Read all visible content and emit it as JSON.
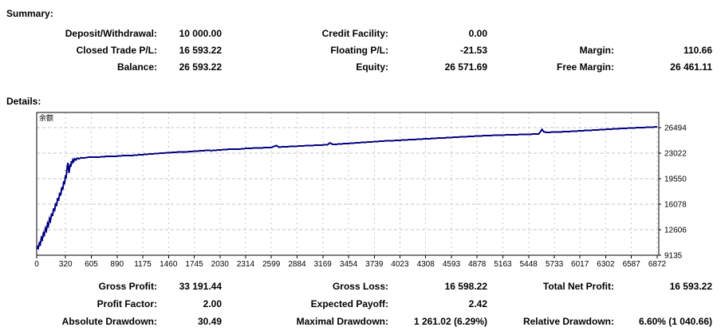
{
  "summary": {
    "heading": "Summary:",
    "rows": [
      {
        "c1l": "Deposit/Withdrawal:",
        "c1v": "10 000.00",
        "c2l": "Credit Facility:",
        "c2v": "0.00",
        "c3l": "",
        "c3v": ""
      },
      {
        "c1l": "Closed Trade P/L:",
        "c1v": "16 593.22",
        "c2l": "Floating P/L:",
        "c2v": "-21.53",
        "c3l": "Margin:",
        "c3v": "110.66"
      },
      {
        "c1l": "Balance:",
        "c1v": "26 593.22",
        "c2l": "Equity:",
        "c2v": "26 571.69",
        "c3l": "Free Margin:",
        "c3v": "26 461.11"
      }
    ]
  },
  "details": {
    "heading": "Details:",
    "stats_rows": [
      {
        "c1l": "Gross Profit:",
        "c1v": "33 191.44",
        "c2l": "Gross Loss:",
        "c2v": "16 598.22",
        "c3l": "Total Net Profit:",
        "c3v": "16 593.22"
      },
      {
        "c1l": "Profit Factor:",
        "c1v": "2.00",
        "c2l": "Expected Payoff:",
        "c2v": "2.42",
        "c3l": "",
        "c3v": ""
      },
      {
        "c1l": "Absolute Drawdown:",
        "c1v": "30.49",
        "c2l": "Maximal Drawdown:",
        "c2v": "1 261.02 (6.29%)",
        "c3l": "Relative Drawdown:",
        "c3v": "6.60% (1 040.66)"
      }
    ]
  },
  "chart_data": {
    "type": "line",
    "title": "余额",
    "xlabel": "",
    "ylabel": "",
    "grid": true,
    "legend_position": "none",
    "line_color": "#000080",
    "grid_color": "#c6c6c6",
    "border_color": "#000000",
    "background_color": "#ffffff",
    "xlim": [
      0,
      6890
    ],
    "ylim": [
      9135,
      28556
    ],
    "x_ticks": [
      0,
      320,
      605,
      890,
      1175,
      1460,
      1745,
      2030,
      2314,
      2599,
      2884,
      3169,
      3454,
      3739,
      4023,
      4308,
      4593,
      4878,
      5163,
      5448,
      5733,
      6017,
      6302,
      6587,
      6872
    ],
    "y_ticks": [
      26494,
      23022,
      19550,
      16078,
      12606,
      9135
    ],
    "series": [
      {
        "name": "Balance",
        "points": [
          [
            0,
            9990
          ],
          [
            10,
            10250
          ],
          [
            18,
            10100
          ],
          [
            30,
            10800
          ],
          [
            40,
            10600
          ],
          [
            52,
            11500
          ],
          [
            62,
            11250
          ],
          [
            75,
            12150
          ],
          [
            85,
            11900
          ],
          [
            98,
            12800
          ],
          [
            108,
            12500
          ],
          [
            120,
            13450
          ],
          [
            130,
            13150
          ],
          [
            142,
            14100
          ],
          [
            152,
            13800
          ],
          [
            165,
            14800
          ],
          [
            175,
            14450
          ],
          [
            188,
            15500
          ],
          [
            198,
            15150
          ],
          [
            210,
            16200
          ],
          [
            220,
            15850
          ],
          [
            232,
            16900
          ],
          [
            242,
            16550
          ],
          [
            255,
            17650
          ],
          [
            265,
            17250
          ],
          [
            278,
            18400
          ],
          [
            288,
            18000
          ],
          [
            300,
            19200
          ],
          [
            308,
            18800
          ],
          [
            318,
            20000
          ],
          [
            326,
            19600
          ],
          [
            334,
            20800
          ],
          [
            340,
            21300
          ],
          [
            346,
            21700
          ],
          [
            352,
            20900
          ],
          [
            358,
            20300
          ],
          [
            365,
            21000
          ],
          [
            372,
            21500
          ],
          [
            378,
            21200
          ],
          [
            385,
            21900
          ],
          [
            392,
            21600
          ],
          [
            400,
            22100
          ],
          [
            410,
            21900
          ],
          [
            420,
            22250
          ],
          [
            435,
            22100
          ],
          [
            450,
            22350
          ],
          [
            470,
            22250
          ],
          [
            490,
            22400
          ],
          [
            520,
            22350
          ],
          [
            560,
            22450
          ],
          [
            620,
            22500
          ],
          [
            680,
            22480
          ],
          [
            740,
            22550
          ],
          [
            800,
            22600
          ],
          [
            860,
            22580
          ],
          [
            920,
            22650
          ],
          [
            980,
            22700
          ],
          [
            1040,
            22680
          ],
          [
            1100,
            22760
          ],
          [
            1160,
            22810
          ],
          [
            1220,
            22870
          ],
          [
            1280,
            22920
          ],
          [
            1340,
            22980
          ],
          [
            1400,
            23030
          ],
          [
            1460,
            23080
          ],
          [
            1520,
            23130
          ],
          [
            1580,
            23190
          ],
          [
            1640,
            23170
          ],
          [
            1700,
            23240
          ],
          [
            1760,
            23290
          ],
          [
            1820,
            23340
          ],
          [
            1880,
            23390
          ],
          [
            1940,
            23370
          ],
          [
            2000,
            23440
          ],
          [
            2060,
            23490
          ],
          [
            2120,
            23540
          ],
          [
            2180,
            23590
          ],
          [
            2240,
            23570
          ],
          [
            2300,
            23640
          ],
          [
            2360,
            23690
          ],
          [
            2420,
            23710
          ],
          [
            2480,
            23740
          ],
          [
            2540,
            23770
          ],
          [
            2600,
            23800
          ],
          [
            2655,
            24050
          ],
          [
            2680,
            23850
          ],
          [
            2740,
            23880
          ],
          [
            2800,
            23920
          ],
          [
            2860,
            23950
          ],
          [
            2920,
            24000
          ],
          [
            2980,
            24030
          ],
          [
            3040,
            24060
          ],
          [
            3100,
            24100
          ],
          [
            3160,
            24130
          ],
          [
            3220,
            24160
          ],
          [
            3248,
            24420
          ],
          [
            3280,
            24200
          ],
          [
            3340,
            24250
          ],
          [
            3400,
            24300
          ],
          [
            3460,
            24350
          ],
          [
            3520,
            24400
          ],
          [
            3580,
            24450
          ],
          [
            3640,
            24500
          ],
          [
            3700,
            24550
          ],
          [
            3760,
            24600
          ],
          [
            3820,
            24650
          ],
          [
            3880,
            24700
          ],
          [
            3940,
            24720
          ],
          [
            4000,
            24760
          ],
          [
            4060,
            24800
          ],
          [
            4120,
            24850
          ],
          [
            4180,
            24880
          ],
          [
            4240,
            24920
          ],
          [
            4300,
            24960
          ],
          [
            4360,
            25000
          ],
          [
            4420,
            25050
          ],
          [
            4480,
            25080
          ],
          [
            4540,
            25120
          ],
          [
            4600,
            25160
          ],
          [
            4660,
            25200
          ],
          [
            4720,
            25250
          ],
          [
            4780,
            25280
          ],
          [
            4840,
            25320
          ],
          [
            4900,
            25360
          ],
          [
            4960,
            25400
          ],
          [
            5020,
            25420
          ],
          [
            5080,
            25450
          ],
          [
            5140,
            25480
          ],
          [
            5200,
            25500
          ],
          [
            5260,
            25520
          ],
          [
            5320,
            25540
          ],
          [
            5380,
            25560
          ],
          [
            5440,
            25580
          ],
          [
            5500,
            25600
          ],
          [
            5560,
            25620
          ],
          [
            5598,
            26250
          ],
          [
            5618,
            25900
          ],
          [
            5650,
            25850
          ],
          [
            5710,
            25880
          ],
          [
            5770,
            25900
          ],
          [
            5830,
            25930
          ],
          [
            5890,
            25960
          ],
          [
            5950,
            26010
          ],
          [
            6010,
            26050
          ],
          [
            6070,
            26090
          ],
          [
            6130,
            26130
          ],
          [
            6190,
            26170
          ],
          [
            6250,
            26210
          ],
          [
            6310,
            26260
          ],
          [
            6370,
            26300
          ],
          [
            6430,
            26340
          ],
          [
            6490,
            26380
          ],
          [
            6550,
            26420
          ],
          [
            6610,
            26450
          ],
          [
            6670,
            26490
          ],
          [
            6730,
            26520
          ],
          [
            6790,
            26550
          ],
          [
            6850,
            26580
          ],
          [
            6872,
            26593
          ]
        ]
      }
    ]
  }
}
